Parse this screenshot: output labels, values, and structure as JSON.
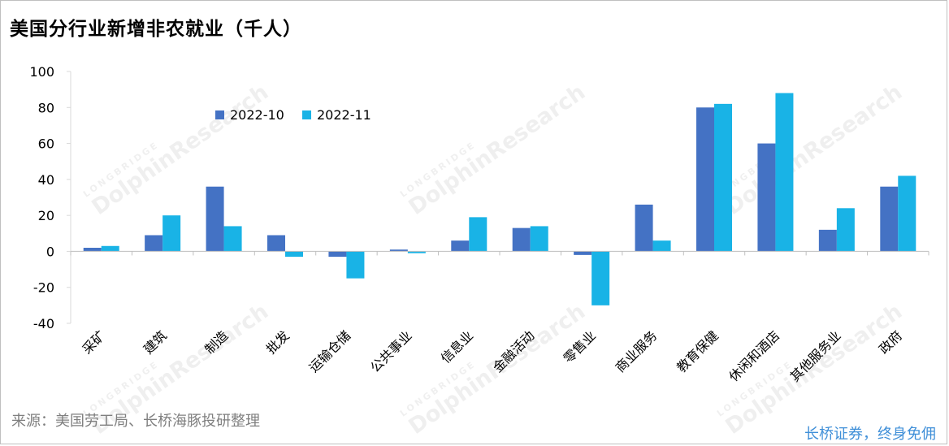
{
  "header": {
    "title": "美国分行业新增非农就业（千人）"
  },
  "footer": {
    "source": "来源：美国劳工局、长桥海豚投研整理",
    "slogan": "长桥证券，终身免佣"
  },
  "watermark": {
    "brand": "DolphinResearch",
    "sub": "LONGBRIDGE"
  },
  "colors": {
    "series_1": "#4472c4",
    "series_2": "#19b3e6"
  },
  "chart_data": {
    "type": "bar",
    "title": "美国分行业新增非农就业（千人）",
    "categories": [
      "采矿",
      "建筑",
      "制造",
      "批发",
      "运输仓储",
      "公共事业",
      "信息业",
      "金融活动",
      "零售业",
      "商业服务",
      "教育保健",
      "休闲和酒店",
      "其他服务业",
      "政府"
    ],
    "series": [
      {
        "name": "2022-10",
        "values": [
          2,
          9,
          36,
          9,
          -3,
          1,
          6,
          13,
          -2,
          26,
          80,
          60,
          12,
          36
        ]
      },
      {
        "name": "2022-11",
        "values": [
          3,
          20,
          14,
          -3,
          -15,
          -1,
          19,
          14,
          -30,
          6,
          82,
          88,
          24,
          42
        ]
      }
    ],
    "ylim": [
      -40,
      100
    ],
    "yticks": [
      -40,
      -20,
      0,
      20,
      40,
      60,
      80,
      100
    ],
    "xlabel": "",
    "ylabel": "",
    "legend_position": "top-left",
    "grid": false
  }
}
